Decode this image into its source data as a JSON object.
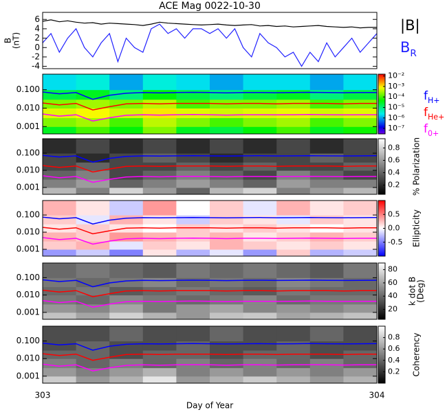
{
  "chart_data": [
    {
      "type": "line",
      "title": "ACE Mag 0022-10-30",
      "ylabel": [
        "B",
        "(nT)"
      ],
      "xlim": [
        303,
        304
      ],
      "ylim": [
        -4.5,
        7.5
      ],
      "yticks": [
        -4,
        -2,
        0,
        2,
        4,
        6
      ],
      "x": [
        303,
        303.025,
        303.05,
        303.075,
        303.1,
        303.125,
        303.15,
        303.175,
        303.2,
        303.225,
        303.25,
        303.275,
        303.3,
        303.325,
        303.35,
        303.375,
        303.4,
        303.425,
        303.45,
        303.475,
        303.5,
        303.525,
        303.55,
        303.575,
        303.6,
        303.625,
        303.65,
        303.675,
        303.7,
        303.725,
        303.75,
        303.775,
        303.8,
        303.825,
        303.85,
        303.875,
        303.9,
        303.925,
        303.95,
        303.975,
        304
      ],
      "series": [
        {
          "name": {
            "text": "|B|"
          },
          "color": "#000000",
          "values": [
            5.6,
            5.9,
            5.5,
            5.7,
            5.4,
            5.2,
            5.3,
            5.0,
            5.2,
            5.1,
            5.0,
            4.9,
            4.7,
            5.0,
            5.4,
            5.2,
            5.1,
            5.0,
            4.9,
            4.8,
            4.9,
            5.0,
            4.8,
            4.7,
            4.8,
            4.9,
            4.6,
            4.7,
            4.5,
            4.6,
            4.4,
            4.5,
            4.6,
            4.7,
            4.5,
            4.4,
            4.3,
            4.4,
            4.2,
            4.3,
            4.3
          ]
        },
        {
          "name": {
            "text": "B",
            "sub": "R"
          },
          "color": "#2020ff",
          "values": [
            1,
            3,
            -1,
            2,
            4,
            0,
            -2,
            1,
            3,
            -3,
            2,
            0,
            -1,
            4,
            5,
            3,
            4,
            2,
            4,
            4,
            3,
            4,
            2,
            4,
            0,
            -2,
            3,
            1,
            0,
            -2,
            -1,
            -4,
            -1,
            -3,
            1,
            -2,
            0,
            2,
            -1,
            1,
            3
          ]
        }
      ]
    },
    {
      "type": "heatmap",
      "colormap": "rainbow",
      "zscale": "log",
      "zlim": [
        3e-08,
        0.015
      ],
      "zticks": [
        {
          "value": 0.01,
          "label": "10⁻²"
        },
        {
          "value": 0.001,
          "label": "10⁻³"
        },
        {
          "value": 0.0001,
          "label": "10⁻⁴"
        },
        {
          "value": 1e-05,
          "label": "10⁻⁵"
        },
        {
          "value": 1e-06,
          "label": "10⁻⁶"
        },
        {
          "value": 1e-07,
          "label": "10⁻⁷"
        }
      ],
      "ylog": true,
      "ylim": [
        0.0004,
        0.7
      ],
      "yticks": [
        0.001,
        {
          "value": 0.01,
          "label": "0.010"
        },
        {
          "value": 0.1,
          "label": "0.100"
        }
      ],
      "xbins": [
        303,
        303.1,
        303.2,
        303.3,
        303.4,
        303.5,
        303.6,
        303.7,
        303.8,
        303.9,
        304
      ],
      "ybins": [
        0.0004,
        0.001,
        0.003,
        0.01,
        0.03,
        0.1,
        0.7
      ],
      "z": [
        [
          3e-05,
          0.0001,
          4e-05,
          0.0002,
          3e-05,
          2e-05,
          4e-05,
          0.0001,
          3e-05,
          5e-05
        ],
        [
          0.0002,
          0.0003,
          0.0001,
          0.0004,
          0.0002,
          0.0001,
          0.0002,
          0.0003,
          0.0001,
          0.0002
        ],
        [
          0.0006,
          0.0008,
          0.0005,
          0.001,
          0.0006,
          0.0005,
          0.0006,
          0.0007,
          0.0005,
          0.0006
        ],
        [
          0.0002,
          0.0003,
          0.0002,
          0.0004,
          0.0001,
          0.0002,
          0.0002,
          0.0003,
          0.0001,
          0.0002
        ],
        [
          2e-05,
          3e-05,
          1e-05,
          4e-05,
          2e-05,
          1e-05,
          2e-05,
          3e-05,
          1e-05,
          2e-05
        ],
        [
          2e-06,
          3e-06,
          1e-06,
          3e-06,
          2e-06,
          1e-06,
          2e-06,
          2e-06,
          1e-06,
          2e-06
        ]
      ],
      "x": [
        303,
        303.05,
        303.1,
        303.15,
        303.2,
        303.25,
        303.3,
        303.35,
        303.4,
        303.45,
        303.5,
        303.55,
        303.6,
        303.65,
        303.7,
        303.75,
        303.8,
        303.85,
        303.9,
        303.95,
        304
      ],
      "series": [
        {
          "name": {
            "text": "f",
            "sub": "H+"
          },
          "color": "#0000ff",
          "values": [
            0.075,
            0.06,
            0.07,
            0.03,
            0.05,
            0.065,
            0.07,
            0.068,
            0.07,
            0.072,
            0.07,
            0.068,
            0.07,
            0.071,
            0.069,
            0.07,
            0.072,
            0.07,
            0.069,
            0.07,
            0.071
          ]
        },
        {
          "name": {
            "text": "f",
            "sub": "He+"
          },
          "color": "#ff0000",
          "values": [
            0.019,
            0.015,
            0.018,
            0.008,
            0.012,
            0.017,
            0.018,
            0.017,
            0.018,
            0.018,
            0.018,
            0.017,
            0.018,
            0.018,
            0.017,
            0.018,
            0.018,
            0.018,
            0.017,
            0.018,
            0.018
          ]
        },
        {
          "name": {
            "text": "f",
            "sub": "0+"
          },
          "color": "#ff00ff",
          "values": [
            0.0048,
            0.0037,
            0.0044,
            0.002,
            0.003,
            0.0041,
            0.0044,
            0.0042,
            0.0044,
            0.0045,
            0.0044,
            0.0042,
            0.0044,
            0.0044,
            0.0043,
            0.0044,
            0.0045,
            0.0044,
            0.0043,
            0.0044,
            0.0044
          ]
        }
      ],
      "legend": true,
      "overlay": true
    },
    {
      "type": "heatmap",
      "colormap": "gray",
      "zlim": [
        0.05,
        0.95
      ],
      "zticks": [
        0.2,
        0.4,
        0.6,
        0.8
      ],
      "zlabel": [
        "% Polarization"
      ],
      "ylog": true,
      "ylim": [
        0.0004,
        0.7
      ],
      "yticks": [
        0.001,
        {
          "value": 0.01,
          "label": "0.010"
        },
        {
          "value": 0.1,
          "label": "0.100"
        }
      ],
      "xbins": [
        303,
        303.1,
        303.2,
        303.3,
        303.4,
        303.5,
        303.6,
        303.7,
        303.8,
        303.9,
        304
      ],
      "ybins": [
        0.0004,
        0.001,
        0.003,
        0.01,
        0.03,
        0.1,
        0.7
      ],
      "z": [
        [
          0.7,
          0.5,
          0.8,
          0.6,
          0.4,
          0.7,
          0.8,
          0.5,
          0.6,
          0.7
        ],
        [
          0.5,
          0.6,
          0.4,
          0.5,
          0.6,
          0.5,
          0.4,
          0.6,
          0.5,
          0.5
        ],
        [
          0.4,
          0.5,
          0.3,
          0.4,
          0.5,
          0.4,
          0.3,
          0.5,
          0.4,
          0.3
        ],
        [
          0.3,
          0.4,
          0.3,
          0.3,
          0.4,
          0.3,
          0.4,
          0.3,
          0.3,
          0.4
        ],
        [
          0.3,
          0.2,
          0.3,
          0.4,
          0.3,
          0.2,
          0.3,
          0.3,
          0.4,
          0.3
        ],
        [
          0.2,
          0.3,
          0.2,
          0.3,
          0.2,
          0.3,
          0.2,
          0.3,
          0.2,
          0.3
        ]
      ],
      "overlay": true
    },
    {
      "type": "heatmap",
      "colormap": "bwr",
      "zlim": [
        -1,
        1
      ],
      "zticks": [
        -0.5,
        {
          "value": 0,
          "label": "0.0"
        },
        0.5
      ],
      "zlabel": [
        "Ellipticity"
      ],
      "ylog": true,
      "ylim": [
        0.0004,
        0.7
      ],
      "yticks": [
        0.001,
        {
          "value": 0.01,
          "label": "0.010"
        },
        {
          "value": 0.1,
          "label": "0.100"
        }
      ],
      "xbins": [
        303,
        303.1,
        303.2,
        303.3,
        303.4,
        303.5,
        303.6,
        303.7,
        303.8,
        303.9,
        304
      ],
      "ybins": [
        0.0004,
        0.001,
        0.003,
        0.01,
        0.03,
        0.1,
        0.7
      ],
      "z": [
        [
          -0.4,
          -0.2,
          -0.5,
          0.1,
          -0.3,
          -0.1,
          -0.4,
          0.2,
          -0.3,
          -0.2
        ],
        [
          0.2,
          0.3,
          -0.1,
          0.2,
          0.1,
          0.3,
          0.2,
          0.1,
          0.2,
          0.1
        ],
        [
          0.3,
          0.2,
          0.4,
          0.3,
          0.2,
          0.3,
          0.1,
          0.2,
          0.3,
          0.2
        ],
        [
          0.1,
          0.2,
          0.1,
          0.0,
          0.2,
          0.1,
          0.2,
          0.1,
          0.0,
          0.1
        ],
        [
          0.2,
          -0.1,
          0.3,
          0.1,
          -0.2,
          0.2,
          0.1,
          -0.1,
          0.2,
          0.1
        ],
        [
          0.3,
          0.1,
          -0.2,
          0.4,
          0.0,
          0.2,
          -0.1,
          0.3,
          0.1,
          0.2
        ]
      ],
      "overlay": true
    },
    {
      "type": "heatmap",
      "colormap": "gray",
      "zlim": [
        5,
        90
      ],
      "zticks": [
        20,
        40,
        60,
        80
      ],
      "zlabel": [
        "k dot B",
        "(Deg)"
      ],
      "ylog": true,
      "ylim": [
        0.0004,
        0.7
      ],
      "yticks": [
        0.001,
        {
          "value": 0.01,
          "label": "0.010"
        },
        {
          "value": 0.1,
          "label": "0.100"
        }
      ],
      "xbins": [
        303,
        303.1,
        303.2,
        303.3,
        303.4,
        303.5,
        303.6,
        303.7,
        303.8,
        303.9,
        304
      ],
      "ybins": [
        0.0004,
        0.001,
        0.003,
        0.01,
        0.03,
        0.1,
        0.7
      ],
      "z": [
        [
          70,
          60,
          75,
          65,
          55,
          70,
          72,
          60,
          65,
          70
        ],
        [
          55,
          50,
          60,
          45,
          55,
          60,
          50,
          55,
          50,
          55
        ],
        [
          45,
          40,
          50,
          45,
          40,
          45,
          50,
          40,
          45,
          45
        ],
        [
          40,
          45,
          35,
          40,
          45,
          40,
          35,
          45,
          40,
          40
        ],
        [
          45,
          40,
          45,
          50,
          40,
          45,
          40,
          50,
          45,
          40
        ],
        [
          40,
          45,
          40,
          35,
          45,
          40,
          45,
          40,
          35,
          45
        ]
      ],
      "overlay": true
    },
    {
      "type": "heatmap",
      "colormap": "gray",
      "zlim": [
        0,
        1
      ],
      "zticks": [
        0.2,
        0.4,
        0.6,
        0.8
      ],
      "zlabel": [
        "Coherency"
      ],
      "ylog": true,
      "ylim": [
        0.0004,
        0.7
      ],
      "yticks": [
        0.001,
        {
          "value": 0.01,
          "label": "0.010"
        },
        {
          "value": 0.1,
          "label": "0.100"
        }
      ],
      "xbins": [
        303,
        303.1,
        303.2,
        303.3,
        303.4,
        303.5,
        303.6,
        303.7,
        303.8,
        303.9,
        304
      ],
      "ybins": [
        0.0004,
        0.001,
        0.003,
        0.01,
        0.03,
        0.1,
        0.7
      ],
      "z": [
        [
          0.8,
          0.6,
          0.7,
          0.9,
          0.6,
          0.7,
          0.8,
          0.7,
          0.6,
          0.7
        ],
        [
          0.6,
          0.5,
          0.6,
          0.7,
          0.5,
          0.6,
          0.5,
          0.6,
          0.5,
          0.6
        ],
        [
          0.5,
          0.4,
          0.5,
          0.4,
          0.5,
          0.4,
          0.5,
          0.4,
          0.5,
          0.4
        ],
        [
          0.4,
          0.4,
          0.3,
          0.4,
          0.4,
          0.3,
          0.4,
          0.4,
          0.3,
          0.4
        ],
        [
          0.3,
          0.4,
          0.3,
          0.3,
          0.4,
          0.3,
          0.3,
          0.4,
          0.3,
          0.3
        ],
        [
          0.3,
          0.3,
          0.4,
          0.3,
          0.3,
          0.4,
          0.3,
          0.3,
          0.4,
          0.3
        ]
      ],
      "overlay": true,
      "xticks": [
        303,
        304
      ],
      "xlabel": "Day of Year"
    }
  ]
}
